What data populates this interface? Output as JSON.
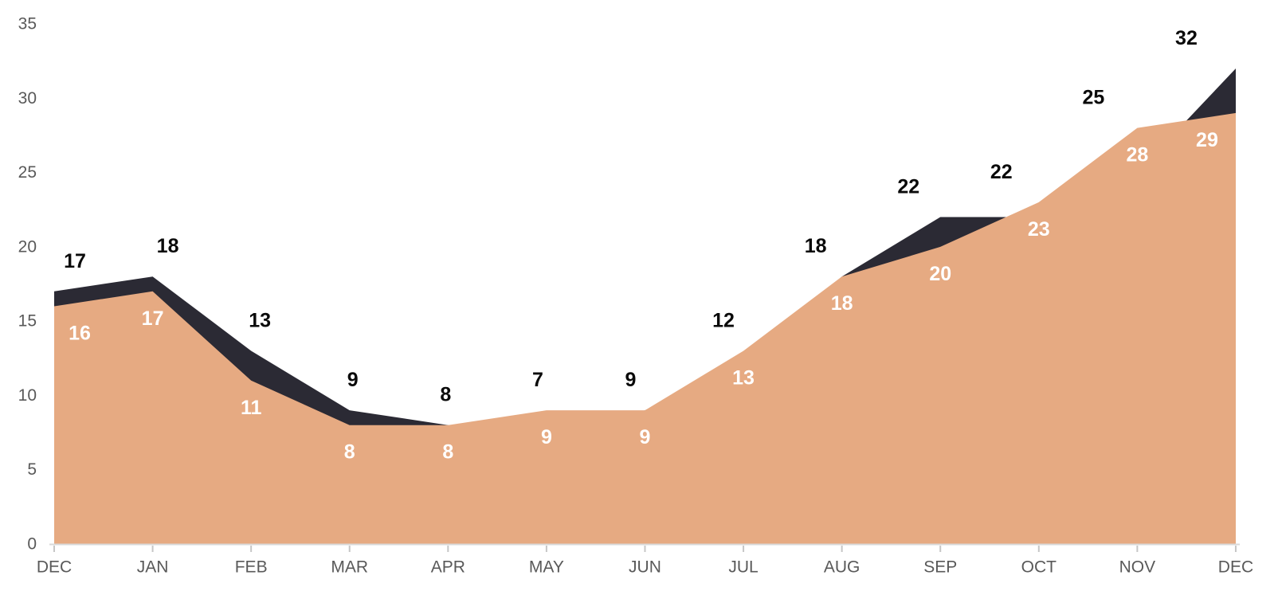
{
  "chart_data": {
    "type": "area",
    "title": "",
    "xlabel": "",
    "ylabel": "",
    "categories": [
      "DEC",
      "JAN",
      "FEB",
      "MAR",
      "APR",
      "MAY",
      "JUN",
      "JUL",
      "AUG",
      "SEP",
      "OCT",
      "NOV",
      "DEC"
    ],
    "series": [
      {
        "name": "dark-series",
        "color": "#2B2A34",
        "label_color": "#0A0A0A",
        "values": [
          17,
          18,
          13,
          9,
          8,
          7,
          9,
          12,
          18,
          22,
          22,
          25,
          32
        ]
      },
      {
        "name": "salmon-series",
        "color": "#E6AA82",
        "label_color": "#FFFFFF",
        "values": [
          16,
          17,
          11,
          8,
          8,
          9,
          9,
          13,
          18,
          20,
          23,
          28,
          29
        ]
      }
    ],
    "y_axis": {
      "ticks": [
        0,
        5,
        10,
        15,
        20,
        25,
        30,
        35
      ],
      "min": 0,
      "max": 35
    },
    "grid": false,
    "legend": false,
    "colors": {
      "axis_line": "#D9D9D9",
      "tick_mark": "#C6C6C6",
      "axis_text": "#595959",
      "background": "#FFFFFF"
    }
  }
}
